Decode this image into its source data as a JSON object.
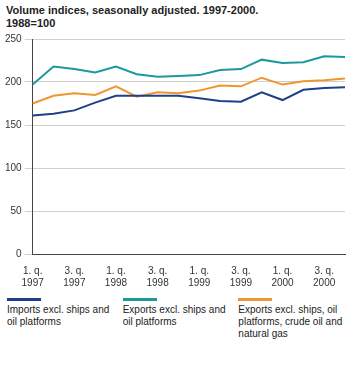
{
  "chart_data": {
    "type": "line",
    "title": "Volume indices, seasonally adjusted. 1997-2000.",
    "subtitle": "1988=100",
    "categories": [
      "1. q. 1997",
      null,
      "3. q. 1997",
      null,
      "1. q. 1998",
      null,
      "3. q. 1998",
      null,
      "1. q. 1999",
      null,
      "3. q. 1999",
      null,
      "1. q. 2000",
      null,
      "3. q. 2000",
      null
    ],
    "series": [
      {
        "name": "Imports excl. ships and oil platforms",
        "color": "#1f3f8a",
        "values": [
          161,
          163,
          167,
          176,
          184,
          184,
          184,
          184,
          181,
          178,
          177,
          188,
          179,
          191,
          193,
          194
        ]
      },
      {
        "name": "Exports excl. ships and oil platforms",
        "color": "#1a9a9c",
        "values": [
          197,
          218,
          215,
          211,
          218,
          209,
          206,
          207,
          208,
          214,
          215,
          226,
          222,
          223,
          230,
          229
        ]
      },
      {
        "name": "Exports excl. ships, oil platforms, crude oil and natural gas",
        "color": "#f0962e",
        "values": [
          175,
          184,
          187,
          185,
          195,
          183,
          188,
          187,
          190,
          196,
          195,
          205,
          197,
          201,
          202,
          204
        ]
      }
    ],
    "ylim": [
      0,
      250
    ],
    "yticks": [
      0,
      50,
      100,
      150,
      200,
      250
    ],
    "grid": true,
    "legend": "bottom",
    "marker": "none"
  }
}
